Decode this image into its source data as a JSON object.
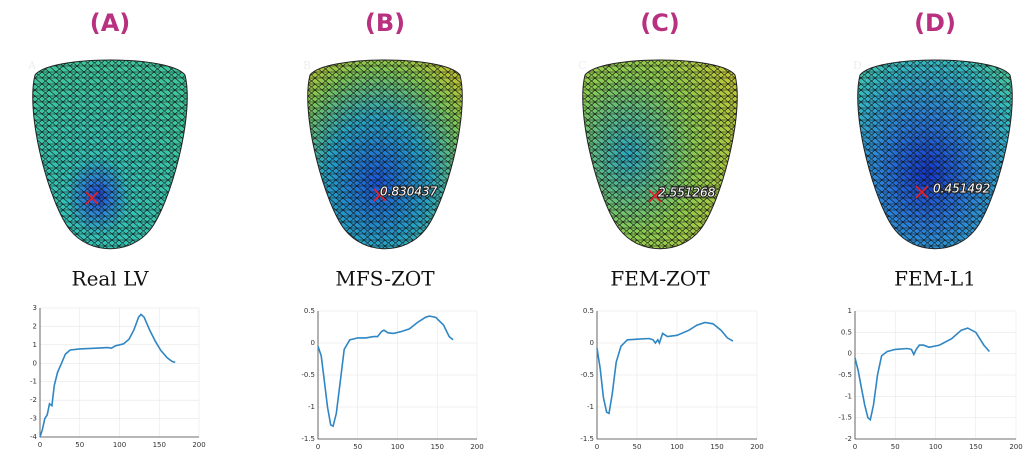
{
  "chart_data": [
    {
      "type": "line",
      "panel_label": "(A)",
      "mesh_label": "A",
      "title": "Real LV",
      "color": "#2f86c4",
      "x": [
        0,
        3,
        6,
        9,
        12,
        15,
        18,
        22,
        27,
        32,
        38,
        50,
        70,
        85,
        90,
        95,
        105,
        112,
        118,
        124,
        127,
        131,
        138,
        145,
        152,
        160,
        166,
        170
      ],
      "values": [
        -4,
        -3.6,
        -3,
        -2.8,
        -2.2,
        -2.3,
        -1.2,
        -0.5,
        0,
        0.5,
        0.72,
        0.78,
        0.82,
        0.85,
        0.82,
        0.95,
        1.05,
        1.3,
        1.8,
        2.5,
        2.65,
        2.5,
        1.8,
        1.2,
        0.7,
        0.3,
        0.1,
        0.05
      ],
      "xlim": [
        0,
        200
      ],
      "xticks": [
        0,
        50,
        100,
        150,
        200
      ],
      "ylim": [
        -4,
        3
      ],
      "yticks": [
        -4,
        -3,
        -2,
        -1,
        0,
        1,
        2,
        3
      ],
      "grid": true
    },
    {
      "type": "line",
      "panel_label": "(B)",
      "mesh_label": "B",
      "title": "MFS-ZOT",
      "annotation": "0.830437",
      "color": "#2f86c4",
      "x": [
        0,
        4,
        8,
        12,
        16,
        19,
        23,
        28,
        33,
        40,
        50,
        60,
        70,
        75,
        80,
        83,
        88,
        95,
        105,
        115,
        125,
        135,
        140,
        148,
        158,
        165,
        170
      ],
      "values": [
        -0.05,
        -0.2,
        -0.6,
        -1.0,
        -1.28,
        -1.3,
        -1.1,
        -0.6,
        -0.1,
        0.05,
        0.08,
        0.08,
        0.1,
        0.1,
        0.18,
        0.2,
        0.16,
        0.15,
        0.18,
        0.22,
        0.32,
        0.4,
        0.42,
        0.4,
        0.28,
        0.1,
        0.05
      ],
      "xlim": [
        0,
        200
      ],
      "xticks": [
        0,
        50,
        100,
        150,
        200
      ],
      "ylim": [
        -1.5,
        0.5
      ],
      "yticks": [
        -1.5,
        -1,
        -0.5,
        0,
        0.5
      ],
      "grid": true
    },
    {
      "type": "line",
      "panel_label": "(C)",
      "mesh_label": "C",
      "title": "FEM-ZOT",
      "annotation": "2.551268",
      "color": "#2f86c4",
      "x": [
        0,
        4,
        8,
        12,
        15,
        19,
        24,
        30,
        38,
        50,
        65,
        70,
        73,
        76,
        78,
        82,
        88,
        100,
        115,
        125,
        135,
        145,
        155,
        163,
        170
      ],
      "values": [
        -0.08,
        -0.4,
        -0.85,
        -1.08,
        -1.1,
        -0.8,
        -0.3,
        -0.05,
        0.05,
        0.06,
        0.07,
        0.05,
        0,
        0.05,
        0,
        0.15,
        0.1,
        0.12,
        0.2,
        0.28,
        0.32,
        0.3,
        0.2,
        0.08,
        0.03
      ],
      "xlim": [
        0,
        200
      ],
      "xticks": [
        0,
        50,
        100,
        150,
        200
      ],
      "ylim": [
        -1.5,
        0.5
      ],
      "yticks": [
        -1.5,
        -1,
        -0.5,
        0,
        0.5
      ],
      "grid": true
    },
    {
      "type": "line",
      "panel_label": "(D)",
      "mesh_label": "D",
      "title": "FEM-L1",
      "annotation": "0.451492",
      "color": "#2f86c4",
      "x": [
        0,
        4,
        8,
        12,
        16,
        19,
        23,
        28,
        33,
        40,
        50,
        65,
        70,
        73,
        76,
        80,
        85,
        92,
        105,
        120,
        132,
        140,
        150,
        160,
        167
      ],
      "values": [
        -0.1,
        -0.4,
        -0.8,
        -1.2,
        -1.5,
        -1.55,
        -1.2,
        -0.5,
        -0.05,
        0.05,
        0.1,
        0.12,
        0.1,
        -0.02,
        0.1,
        0.2,
        0.2,
        0.15,
        0.2,
        0.35,
        0.55,
        0.6,
        0.5,
        0.2,
        0.05
      ],
      "xlim": [
        0,
        200
      ],
      "xticks": [
        0,
        50,
        100,
        150,
        200
      ],
      "ylim": [
        -2,
        1
      ],
      "yticks": [
        -2,
        -1.5,
        -1,
        -0.5,
        0,
        0.5,
        1
      ],
      "grid": true
    }
  ]
}
